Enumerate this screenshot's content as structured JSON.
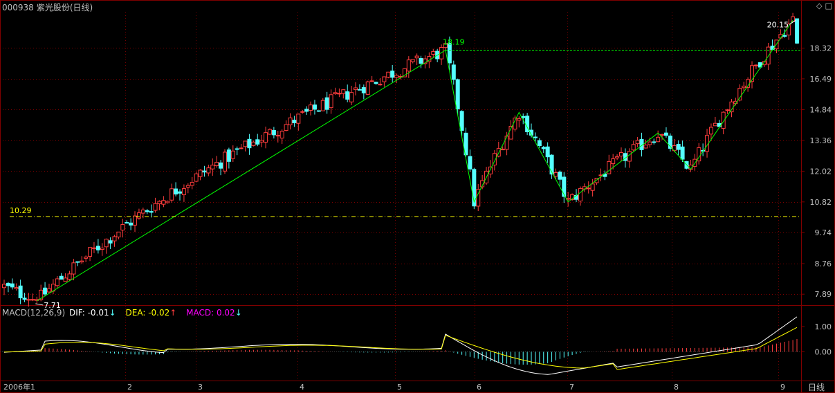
{
  "header": {
    "code": "000938",
    "name": "紫光股份(日线)"
  },
  "macd_header": {
    "label": "MACD(12,26,9)",
    "dif_text": "DIF: -0.01",
    "dif_arrow": "↓",
    "dea_text": "DEA: -0.02",
    "dea_arrow": "↑",
    "macd_text": "MACD: 0.02",
    "macd_arrow": "↓"
  },
  "period_label": "日线",
  "colors": {
    "up": "#ff3d3d",
    "down": "#54ffff",
    "zigzag": "#00ff00",
    "support": "#ffff00",
    "dif": "#ffffff",
    "dea": "#ffff00",
    "axis": "#800000",
    "grid": "#800000"
  },
  "chart_data": [
    {
      "type": "candlestick",
      "title": "000938 紫光股份(日线)",
      "ylabel": "",
      "y_scale": "log",
      "ylim": [
        7.6,
        20.5
      ],
      "y_ticks": [
        7.89,
        8.76,
        9.74,
        10.82,
        12.02,
        13.36,
        14.84,
        16.49,
        18.32
      ],
      "x_ticks": [
        "2006年1",
        "2",
        "3",
        "4",
        "5",
        "6",
        "7",
        "8",
        "9"
      ],
      "annotations": [
        {
          "text": "7.71",
          "kind": "low"
        },
        {
          "text": "18.19",
          "kind": "high"
        },
        {
          "text": "20.15",
          "kind": "high"
        },
        {
          "text": "10.29",
          "kind": "support-line"
        }
      ],
      "zigzag": [
        {
          "month": "1",
          "value": 7.71
        },
        {
          "month": "5",
          "value": 18.19
        },
        {
          "month": "6",
          "value": 10.82
        },
        {
          "month": "6",
          "value": 14.7
        },
        {
          "month": "7",
          "value": 10.82
        },
        {
          "month": "8",
          "value": 13.7
        },
        {
          "month": "8",
          "value": 12.1
        },
        {
          "month": "9",
          "value": 20.15
        }
      ],
      "reference_lines": [
        {
          "value": 18.19,
          "style": "dashed"
        },
        {
          "value": 10.29,
          "style": "dash-dot"
        }
      ]
    },
    {
      "type": "line",
      "title": "MACD(12,26,9)",
      "ylim": [
        -1.0,
        1.6
      ],
      "y_ticks": [
        "1.00",
        "0.00"
      ],
      "series": [
        {
          "name": "DIF",
          "color": "#ffffff"
        },
        {
          "name": "DEA",
          "color": "#ffff00"
        },
        {
          "name": "MACD",
          "color": "#ff00ff"
        }
      ]
    }
  ]
}
